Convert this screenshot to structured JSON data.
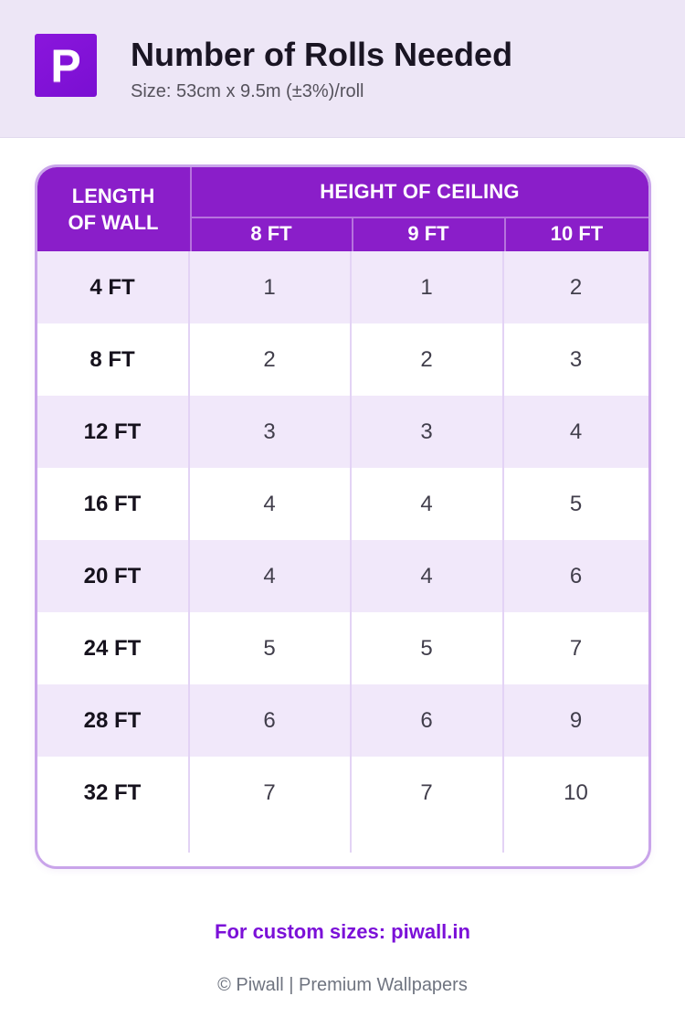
{
  "header": {
    "logo_letter": "P",
    "title": "Number of Rolls Needed",
    "subtitle": "Size: 53cm x 9.5m (±3%)/roll"
  },
  "chart_data": {
    "type": "table",
    "title": "Number of Rolls Needed",
    "subtitle": "Size: 53cm x 9.5m (±3%)/roll",
    "row_axis_label": "LENGTH OF WALL",
    "col_axis_label": "HEIGHT OF CEILING",
    "columns": [
      "8 FT",
      "9 FT",
      "10 FT"
    ],
    "row_labels": [
      "4 FT",
      "8 FT",
      "12 FT",
      "16 FT",
      "20 FT",
      "24 FT",
      "28 FT",
      "32 FT"
    ],
    "values": [
      [
        1,
        1,
        2
      ],
      [
        2,
        2,
        3
      ],
      [
        3,
        3,
        4
      ],
      [
        4,
        4,
        5
      ],
      [
        4,
        4,
        6
      ],
      [
        5,
        5,
        7
      ],
      [
        6,
        6,
        9
      ],
      [
        7,
        7,
        10
      ]
    ],
    "layout": {
      "alternating_row_colors": [
        "#F1E8FA",
        "#FFFFFF"
      ],
      "header_background": "#8A1EC9",
      "header_text_color": "#FFFFFF",
      "card_border_color": "#C9A4EA"
    }
  },
  "footer": {
    "custom_sizes_text": "For custom sizes: piwall.in",
    "copyright_text": "© Piwall | Premium Wallpapers"
  },
  "colors": {
    "accent_purple": "#8A1EC9",
    "logo_purple": "#7F12D6",
    "band_background": "#EDE6F6",
    "footer_link_purple": "#7B10D8",
    "row_lavender": "#F1E8FA",
    "divider": "#E3D3F5"
  }
}
